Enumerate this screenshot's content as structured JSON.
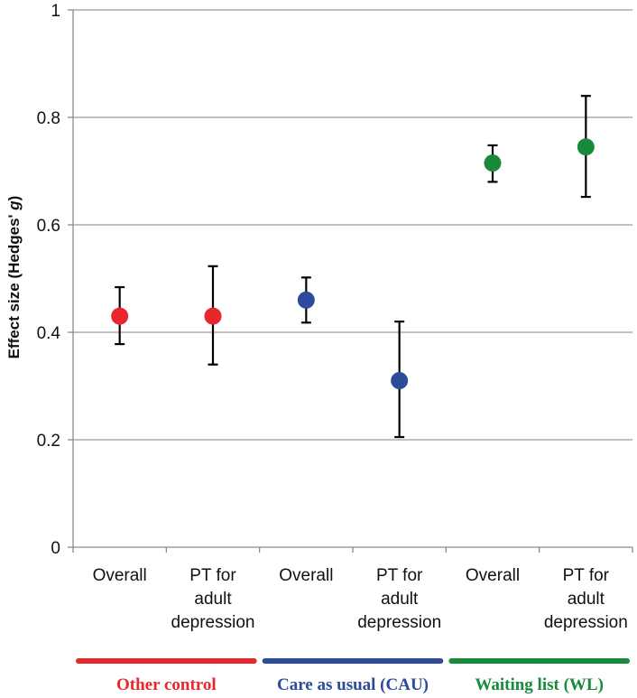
{
  "chart_data": {
    "type": "scatter",
    "title": "",
    "ylabel": "Effect size (Hedges' g)",
    "ylabel_parts": [
      "Effect size (Hedges' ",
      "g",
      ")"
    ],
    "ylim": [
      0,
      1
    ],
    "yticks": [
      "0",
      "0.2",
      "0.4",
      "0.6",
      "0.8",
      "1"
    ],
    "grid": true,
    "categories": [
      [
        "Overall"
      ],
      [
        "PT for",
        "adult",
        "depression"
      ],
      [
        "Overall"
      ],
      [
        "PT for",
        "adult",
        "depression"
      ],
      [
        "Overall"
      ],
      [
        "PT for",
        "adult",
        "depression"
      ]
    ],
    "points": [
      {
        "value": 0.43,
        "lower": 0.378,
        "upper": 0.484,
        "group": 0
      },
      {
        "value": 0.43,
        "lower": 0.34,
        "upper": 0.523,
        "group": 0
      },
      {
        "value": 0.46,
        "lower": 0.418,
        "upper": 0.502,
        "group": 1
      },
      {
        "value": 0.31,
        "lower": 0.205,
        "upper": 0.42,
        "group": 1
      },
      {
        "value": 0.715,
        "lower": 0.68,
        "upper": 0.748,
        "group": 2
      },
      {
        "value": 0.745,
        "lower": 0.652,
        "upper": 0.84,
        "group": 2
      }
    ],
    "groups": [
      {
        "label": "Other control",
        "color": "#e8262b"
      },
      {
        "label": "Care as usual (CAU)",
        "color": "#2d4b9b"
      },
      {
        "label": "Waiting list (WL)",
        "color": "#178a3c"
      }
    ]
  }
}
